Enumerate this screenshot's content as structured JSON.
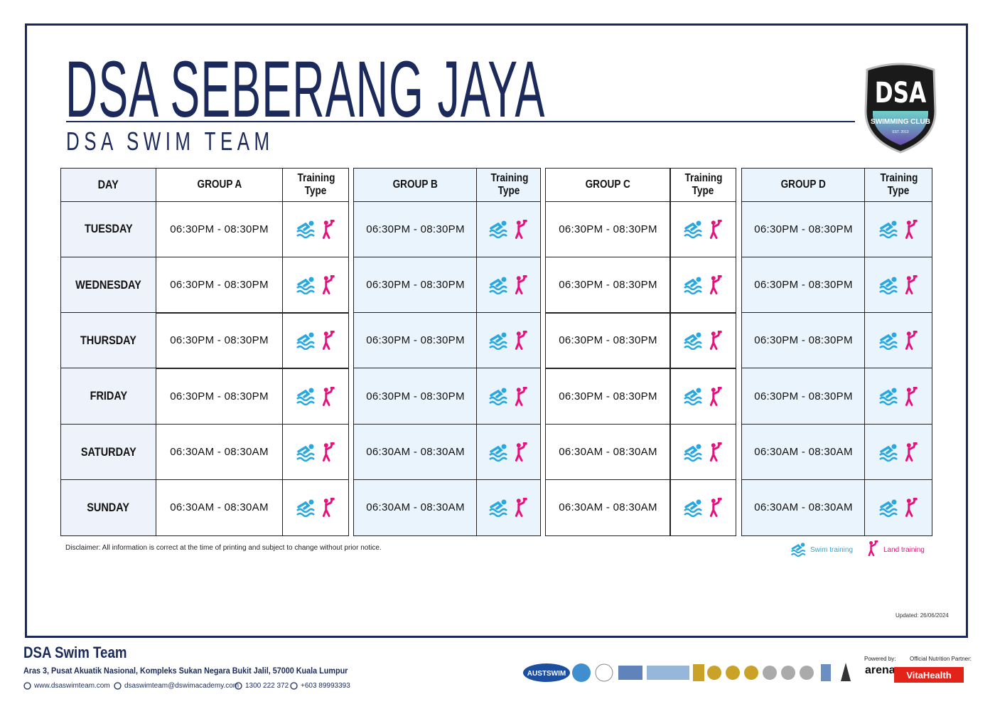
{
  "header": {
    "title": "DSA SEBERANG JAYA",
    "subtitle": "DSA SWIM TEAM",
    "logo": {
      "name": "DSA",
      "tagline": "SWIMMING CLUB",
      "est": "EST. 2013"
    }
  },
  "table": {
    "columns": [
      "DAY",
      "GROUP A",
      "Training Type",
      "GROUP B",
      "Training Type",
      "GROUP C",
      "Training Type",
      "GROUP D",
      "Training Type"
    ],
    "rows": [
      {
        "day": "TUESDAY",
        "times": [
          "06:30PM - 08:30PM",
          "06:30PM - 08:30PM",
          "06:30PM - 08:30PM",
          "06:30PM - 08:30PM"
        ]
      },
      {
        "day": "WEDNESDAY",
        "times": [
          "06:30PM - 08:30PM",
          "06:30PM - 08:30PM",
          "06:30PM - 08:30PM",
          "06:30PM - 08:30PM"
        ]
      },
      {
        "day": "THURSDAY",
        "times": [
          "06:30PM - 08:30PM",
          "06:30PM - 08:30PM",
          "06:30PM - 08:30PM",
          "06:30PM - 08:30PM"
        ]
      },
      {
        "day": "FRIDAY",
        "times": [
          "06:30PM - 08:30PM",
          "06:30PM - 08:30PM",
          "06:30PM - 08:30PM",
          "06:30PM - 08:30PM"
        ]
      },
      {
        "day": "SATURDAY",
        "times": [
          "06:30AM - 08:30AM",
          "06:30AM - 08:30AM",
          "06:30AM - 08:30AM",
          "06:30AM - 08:30AM"
        ]
      },
      {
        "day": "SUNDAY",
        "times": [
          "06:30AM - 08:30AM",
          "06:30AM - 08:30AM",
          "06:30AM - 08:30AM",
          "06:30AM - 08:30AM"
        ]
      }
    ]
  },
  "disclaimer": "Disclaimer: All information is correct at the time of printing and subject to change without prior notice.",
  "legend": {
    "swim": "Swim training",
    "land": "Land training"
  },
  "updated": "Updated: 26/06/2024",
  "footer": {
    "name": "DSA Swim Team",
    "address": "Aras 3, Pusat Akuatik Nasional, Kompleks Sukan Negara Bukit Jalil, 57000 Kuala Lumpur",
    "contacts": [
      "www.dsaswimteam.com",
      "dsaswimteam@dswimacademy.com",
      "1300 222 372",
      "+603 89993393"
    ],
    "sponsor": "AUSTSWIM",
    "powered_label": "Powered by:",
    "powered": "arena",
    "nutrition_label": "Official Nutrition Partner:",
    "nutrition": "VitaHealth"
  }
}
